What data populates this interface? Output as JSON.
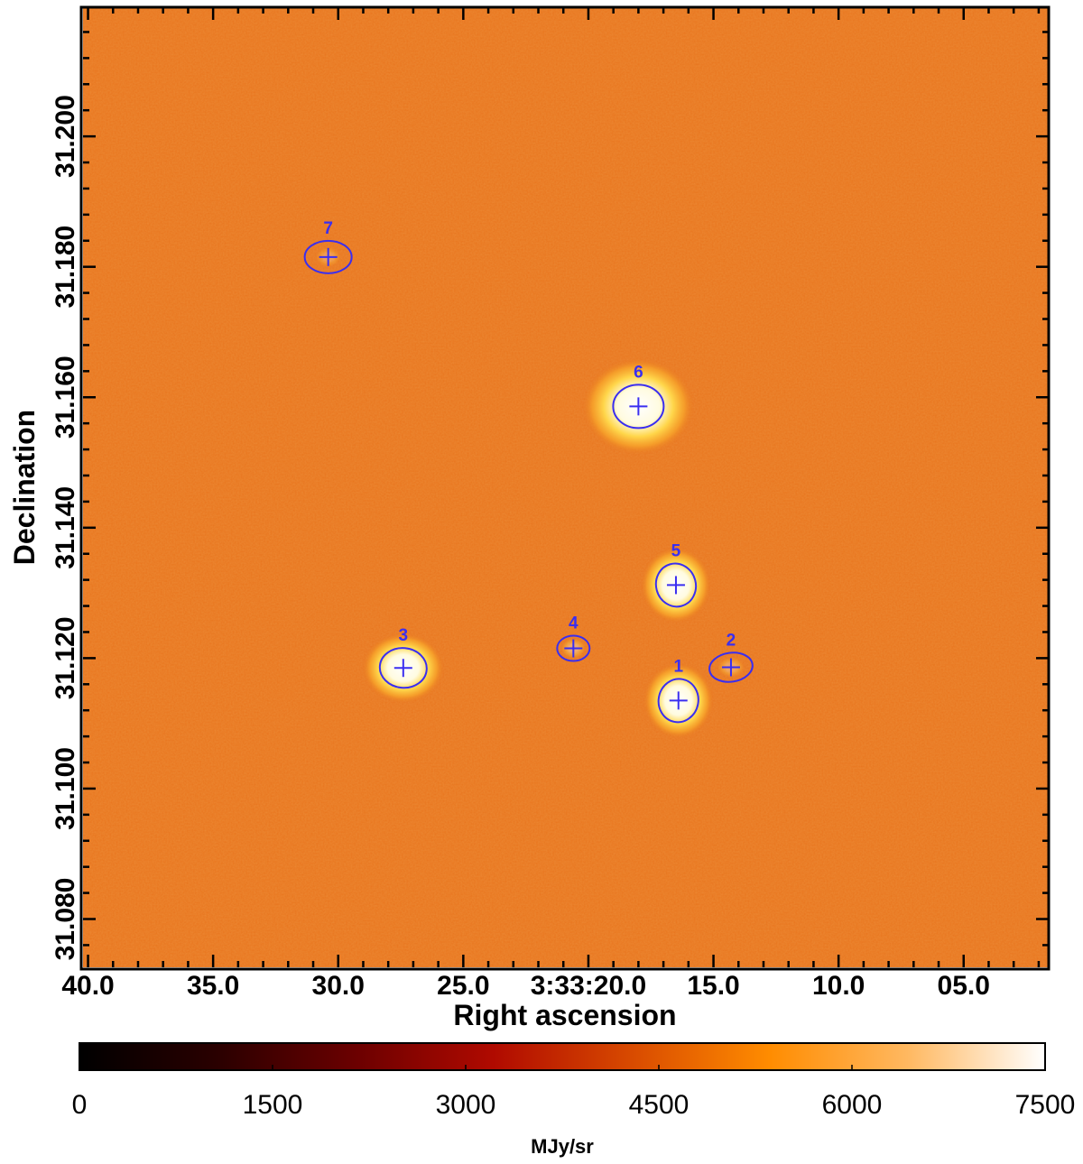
{
  "chart_data": {
    "type": "heatmap",
    "xlabel": "Right ascension",
    "ylabel": "Declination",
    "x_ticks": [
      {
        "label": "40.0",
        "ra_s": 40.0
      },
      {
        "label": "35.0",
        "ra_s": 35.0
      },
      {
        "label": "30.0",
        "ra_s": 30.0
      },
      {
        "label": "25.0",
        "ra_s": 25.0
      },
      {
        "label": "3:33:20.0",
        "ra_s": 20.0
      },
      {
        "label": "15.0",
        "ra_s": 15.0
      },
      {
        "label": "10.0",
        "ra_s": 10.0
      },
      {
        "label": "05.0",
        "ra_s": 5.0
      }
    ],
    "xlim": [
      40.2,
      1.6
    ],
    "y_ticks": [
      {
        "label": "31.080",
        "dec": 31.08
      },
      {
        "label": "31.100",
        "dec": 31.1
      },
      {
        "label": "31.120",
        "dec": 31.12
      },
      {
        "label": "31.140",
        "dec": 31.14
      },
      {
        "label": "31.160",
        "dec": 31.16
      },
      {
        "label": "31.180",
        "dec": 31.18
      },
      {
        "label": "31.200",
        "dec": 31.2
      }
    ],
    "ylim": [
      31.0726,
      31.2198
    ],
    "sources": [
      {
        "id": "1",
        "ra_s": 16.4,
        "dec": 31.1135
      },
      {
        "id": "2",
        "ra_s": 14.3,
        "dec": 31.1186
      },
      {
        "id": "3",
        "ra_s": 27.4,
        "dec": 31.1185
      },
      {
        "id": "4",
        "ra_s": 20.6,
        "dec": 31.1215
      },
      {
        "id": "5",
        "ra_s": 16.5,
        "dec": 31.1312
      },
      {
        "id": "6",
        "ra_s": 18.0,
        "dec": 31.1586
      },
      {
        "id": "7",
        "ra_s": 30.4,
        "dec": 31.1815
      }
    ],
    "colorbar": {
      "min": 0,
      "max": 7500,
      "ticks": [
        "0",
        "1500",
        "3000",
        "4500",
        "6000",
        "7500"
      ],
      "unit": "MJy/sr",
      "colormap": [
        "#000000",
        "#2a0000",
        "#6b0000",
        "#b00a00",
        "#d84a00",
        "#ff8c00",
        "#ffb860",
        "#ffffff"
      ]
    },
    "background_color": "#e8751e",
    "contour_color": "#3a2ef0"
  }
}
